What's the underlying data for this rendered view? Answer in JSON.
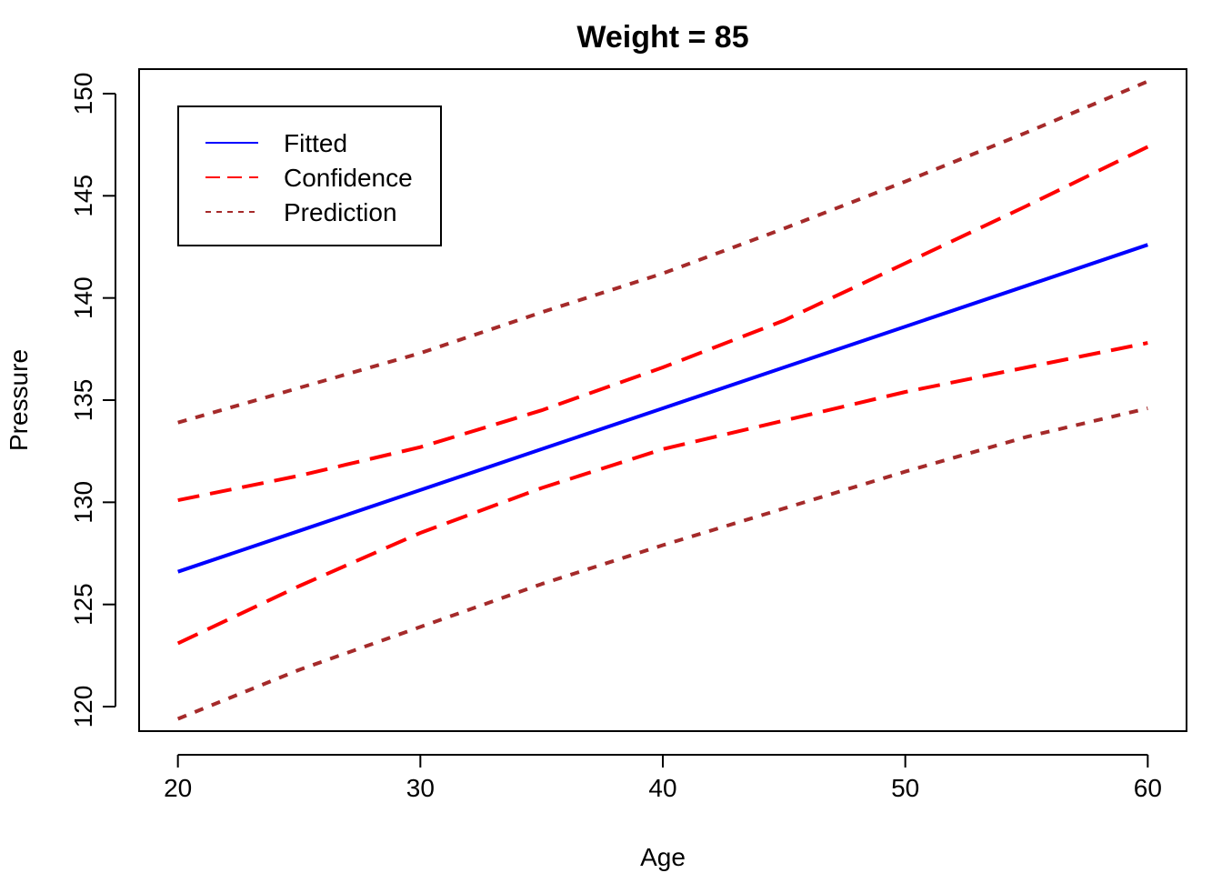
{
  "chart_data": {
    "type": "line",
    "title": "Weight = 85",
    "xlabel": "Age",
    "ylabel": "Pressure",
    "xlim": [
      18.4,
      61.6
    ],
    "ylim": [
      118.8,
      151.2
    ],
    "xticks": [
      20,
      30,
      40,
      50,
      60
    ],
    "yticks": [
      120,
      125,
      130,
      135,
      140,
      145,
      150
    ],
    "grid": false,
    "legend_position": "top-left",
    "x": [
      20,
      25,
      30,
      35,
      40,
      45,
      50,
      55,
      60
    ],
    "series": [
      {
        "name": "Fitted",
        "color": "#0000FF",
        "dash": "solid",
        "values": [
          126.6,
          128.6,
          130.6,
          132.6,
          134.6,
          136.6,
          138.6,
          140.6,
          142.6
        ]
      },
      {
        "name": "Confidence",
        "color": "#FF0000",
        "dash": "long",
        "values": [
          130.1,
          131.3,
          132.7,
          134.5,
          136.6,
          138.9,
          141.7,
          144.5,
          147.4
        ]
      },
      {
        "name": "Confidence",
        "color": "#FF0000",
        "dash": "long",
        "legend": false,
        "values": [
          123.1,
          125.9,
          128.5,
          130.7,
          132.6,
          134.0,
          135.4,
          136.6,
          137.8
        ]
      },
      {
        "name": "Prediction",
        "color": "#A52A2A",
        "dash": "short",
        "values": [
          133.9,
          135.6,
          137.3,
          139.3,
          141.2,
          143.4,
          145.7,
          148.1,
          150.6
        ]
      },
      {
        "name": "Prediction",
        "color": "#A52A2A",
        "dash": "short",
        "legend": false,
        "values": [
          119.4,
          121.8,
          123.9,
          126.0,
          127.9,
          129.7,
          131.5,
          133.2,
          134.6
        ]
      }
    ]
  }
}
